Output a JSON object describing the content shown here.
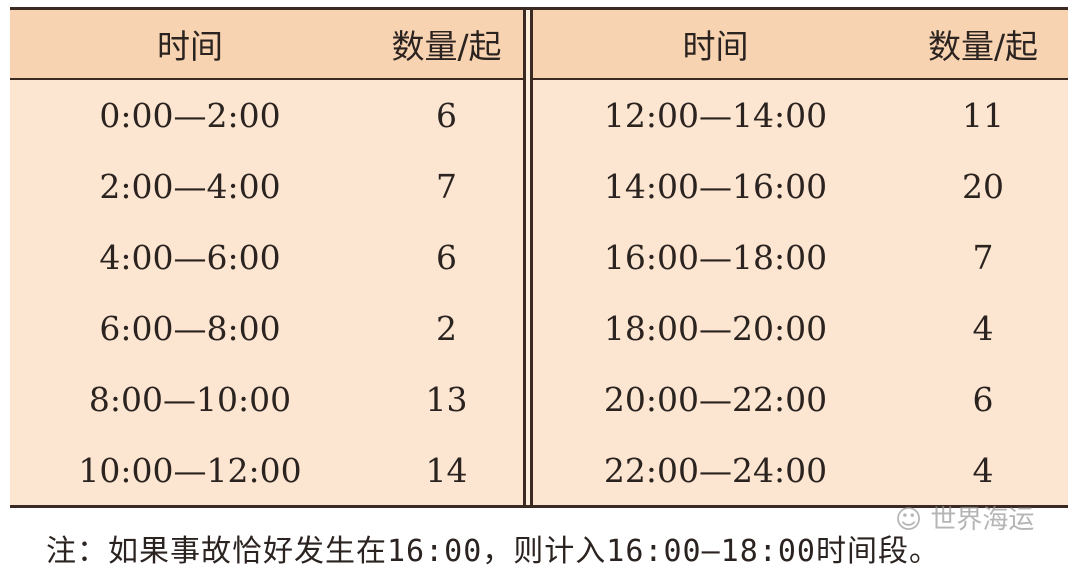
{
  "table": {
    "headers": {
      "time": "时间",
      "count": "数量/起"
    },
    "left_rows": [
      {
        "time": "0:00—2:00",
        "count": "6"
      },
      {
        "time": "2:00—4:00",
        "count": "7"
      },
      {
        "time": "4:00—6:00",
        "count": "6"
      },
      {
        "time": "6:00—8:00",
        "count": "2"
      },
      {
        "time": "8:00—10:00",
        "count": "13"
      },
      {
        "time": "10:00—12:00",
        "count": "14"
      }
    ],
    "right_rows": [
      {
        "time": "12:00—14:00",
        "count": "11"
      },
      {
        "time": "14:00—16:00",
        "count": "20"
      },
      {
        "time": "16:00—18:00",
        "count": "7"
      },
      {
        "time": "18:00—20:00",
        "count": "4"
      },
      {
        "time": "20:00—22:00",
        "count": "6"
      },
      {
        "time": "22:00—24:00",
        "count": "4"
      }
    ]
  },
  "note": "注：如果事故恰好发生在16:00，则计入16:00—18:00时间段。",
  "watermark": "世界海运",
  "colors": {
    "header_bg": "#f8d3b1",
    "body_bg": "#fde6d1",
    "rule": "#3a2a22"
  }
}
